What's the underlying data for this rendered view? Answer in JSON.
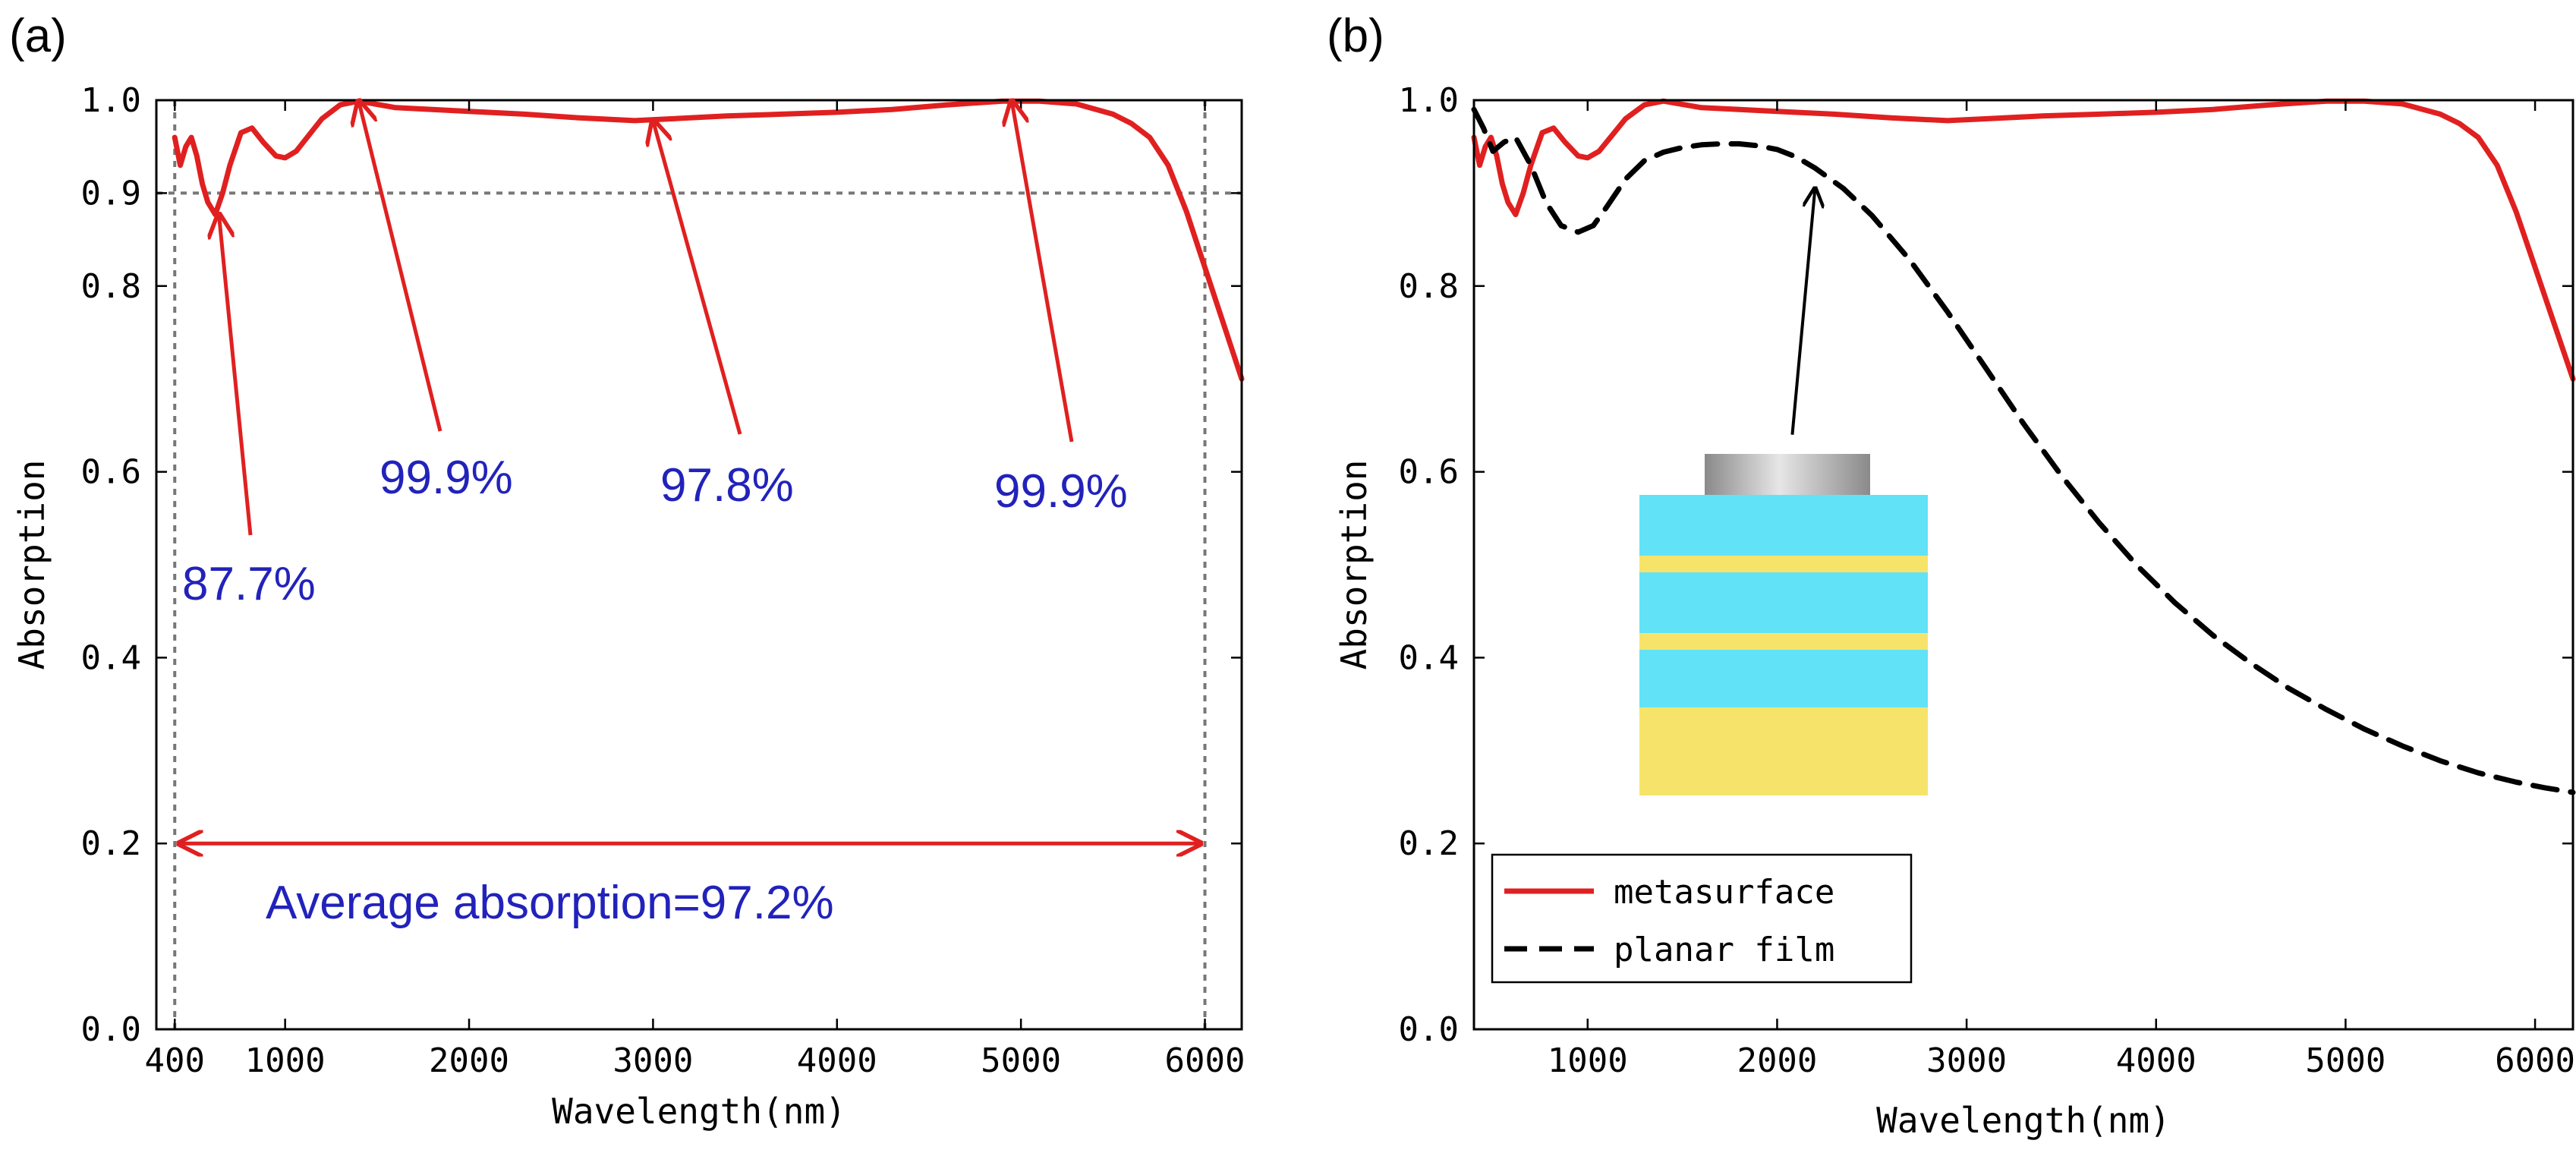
{
  "colors": {
    "metasurface": "#e02020",
    "planar": "#000000",
    "annotation_text": "#2222bb",
    "highlight_tick": "#e02020",
    "inset_dielectric": "#62e2f6",
    "inset_metal": "#f6e46a",
    "inset_top_light": "#e6e6e6",
    "inset_top_dark": "#8a8a8a"
  },
  "chart_data": [
    {
      "panel_label": "(a)",
      "type": "line",
      "xlabel": "Wavelength(nm)",
      "ylabel": "Absorption",
      "xlim": [
        300,
        6200
      ],
      "ylim": [
        0.0,
        1.0
      ],
      "xticks": [
        {
          "value": 400,
          "label": "400",
          "highlight": true
        },
        {
          "value": 1000,
          "label": "1000",
          "highlight": false
        },
        {
          "value": 2000,
          "label": "2000",
          "highlight": false
        },
        {
          "value": 3000,
          "label": "3000",
          "highlight": false
        },
        {
          "value": 4000,
          "label": "4000",
          "highlight": false
        },
        {
          "value": 5000,
          "label": "5000",
          "highlight": false
        },
        {
          "value": 6000,
          "label": "6000",
          "highlight": true
        }
      ],
      "yticks": [
        {
          "value": 0.0,
          "label": "0.0",
          "highlight": false
        },
        {
          "value": 0.2,
          "label": "0.2",
          "highlight": false
        },
        {
          "value": 0.4,
          "label": "0.4",
          "highlight": false
        },
        {
          "value": 0.6,
          "label": "0.6",
          "highlight": false
        },
        {
          "value": 0.8,
          "label": "0.8",
          "highlight": false
        },
        {
          "value": 0.9,
          "label": "0.9",
          "highlight": true
        },
        {
          "value": 1.0,
          "label": "1.0",
          "highlight": false
        }
      ],
      "reference_lines": {
        "horizontal": [
          0.9
        ],
        "vertical": [
          400,
          6000
        ]
      },
      "series": [
        {
          "name": "metasurface",
          "style": "solid",
          "x": [
            400,
            430,
            460,
            490,
            520,
            550,
            580,
            620,
            660,
            700,
            760,
            820,
            880,
            950,
            1000,
            1060,
            1120,
            1200,
            1300,
            1400,
            1600,
            1800,
            2000,
            2300,
            2600,
            2900,
            3100,
            3400,
            3700,
            4000,
            4300,
            4600,
            4900,
            5100,
            5300,
            5500,
            5600,
            5700,
            5800,
            5900,
            6000,
            6100,
            6200
          ],
          "y": [
            0.96,
            0.93,
            0.95,
            0.96,
            0.94,
            0.91,
            0.89,
            0.877,
            0.9,
            0.93,
            0.965,
            0.97,
            0.955,
            0.94,
            0.938,
            0.945,
            0.96,
            0.98,
            0.995,
            0.999,
            0.992,
            0.99,
            0.988,
            0.985,
            0.981,
            0.978,
            0.98,
            0.983,
            0.985,
            0.987,
            0.99,
            0.995,
            0.999,
            0.999,
            0.996,
            0.985,
            0.975,
            0.96,
            0.93,
            0.88,
            0.82,
            0.76,
            0.7
          ]
        }
      ],
      "annotations": [
        {
          "text": "87.7%",
          "x": 640,
          "y": 0.877
        },
        {
          "text": "99.9%",
          "x": 1400,
          "y": 0.999
        },
        {
          "text": "97.8%",
          "x": 3000,
          "y": 0.978
        },
        {
          "text": "99.9%",
          "x": 4950,
          "y": 0.999
        }
      ],
      "range_arrow": {
        "from": 400,
        "to": 6000,
        "y": 0.2,
        "text": "Average absorption=97.2%"
      }
    },
    {
      "panel_label": "(b)",
      "type": "line",
      "xlabel": "Wavelength(nm)",
      "ylabel": "Absorption",
      "xlim": [
        400,
        6200
      ],
      "ylim": [
        0.0,
        1.0
      ],
      "xticks": [
        {
          "value": 1000,
          "label": "1000",
          "highlight": false
        },
        {
          "value": 2000,
          "label": "2000",
          "highlight": false
        },
        {
          "value": 3000,
          "label": "3000",
          "highlight": false
        },
        {
          "value": 4000,
          "label": "4000",
          "highlight": false
        },
        {
          "value": 5000,
          "label": "5000",
          "highlight": false
        },
        {
          "value": 6000,
          "label": "6000",
          "highlight": false
        }
      ],
      "yticks": [
        {
          "value": 0.0,
          "label": "0.0",
          "highlight": false
        },
        {
          "value": 0.2,
          "label": "0.2",
          "highlight": false
        },
        {
          "value": 0.4,
          "label": "0.4",
          "highlight": false
        },
        {
          "value": 0.6,
          "label": "0.6",
          "highlight": false
        },
        {
          "value": 0.8,
          "label": "0.8",
          "highlight": false
        },
        {
          "value": 1.0,
          "label": "1.0",
          "highlight": false
        }
      ],
      "series": [
        {
          "name": "metasurface",
          "style": "solid",
          "x": [
            400,
            430,
            460,
            490,
            520,
            550,
            580,
            620,
            660,
            700,
            760,
            820,
            880,
            950,
            1000,
            1060,
            1120,
            1200,
            1300,
            1400,
            1600,
            1800,
            2000,
            2300,
            2600,
            2900,
            3100,
            3400,
            3700,
            4000,
            4300,
            4600,
            4900,
            5100,
            5300,
            5500,
            5600,
            5700,
            5800,
            5900,
            6000,
            6100,
            6200
          ],
          "y": [
            0.96,
            0.93,
            0.95,
            0.96,
            0.94,
            0.91,
            0.89,
            0.877,
            0.9,
            0.93,
            0.965,
            0.97,
            0.955,
            0.94,
            0.938,
            0.945,
            0.96,
            0.98,
            0.995,
            0.999,
            0.992,
            0.99,
            0.988,
            0.985,
            0.981,
            0.978,
            0.98,
            0.983,
            0.985,
            0.987,
            0.99,
            0.995,
            0.999,
            0.999,
            0.996,
            0.985,
            0.975,
            0.96,
            0.93,
            0.88,
            0.82,
            0.76,
            0.7
          ]
        },
        {
          "name": "planar film",
          "style": "dashed",
          "x": [
            400,
            450,
            500,
            560,
            620,
            700,
            780,
            860,
            950,
            1030,
            1100,
            1200,
            1300,
            1400,
            1500,
            1600,
            1700,
            1800,
            1900,
            2000,
            2100,
            2200,
            2350,
            2500,
            2700,
            2900,
            3100,
            3300,
            3500,
            3700,
            3900,
            4100,
            4300,
            4500,
            4700,
            4900,
            5100,
            5300,
            5500,
            5700,
            5900,
            6050,
            6200
          ],
          "y": [
            0.99,
            0.97,
            0.945,
            0.955,
            0.96,
            0.93,
            0.89,
            0.865,
            0.858,
            0.865,
            0.885,
            0.915,
            0.935,
            0.944,
            0.949,
            0.952,
            0.953,
            0.953,
            0.951,
            0.947,
            0.939,
            0.927,
            0.905,
            0.876,
            0.828,
            0.772,
            0.712,
            0.652,
            0.596,
            0.545,
            0.499,
            0.459,
            0.424,
            0.394,
            0.367,
            0.344,
            0.323,
            0.305,
            0.289,
            0.276,
            0.266,
            0.26,
            0.255
          ]
        }
      ],
      "pointer_arrow": {
        "from_x": 2080,
        "from_y": 0.64,
        "to_x": 2200,
        "to_y": 0.905
      },
      "legend": {
        "position": "bottom-left",
        "entries": [
          "metasurface",
          "planar film"
        ]
      },
      "inset": {
        "description_label": "layered structure",
        "layers": [
          "top disk",
          "dielectric",
          "metal",
          "dielectric",
          "metal",
          "dielectric",
          "metal substrate"
        ]
      }
    }
  ]
}
